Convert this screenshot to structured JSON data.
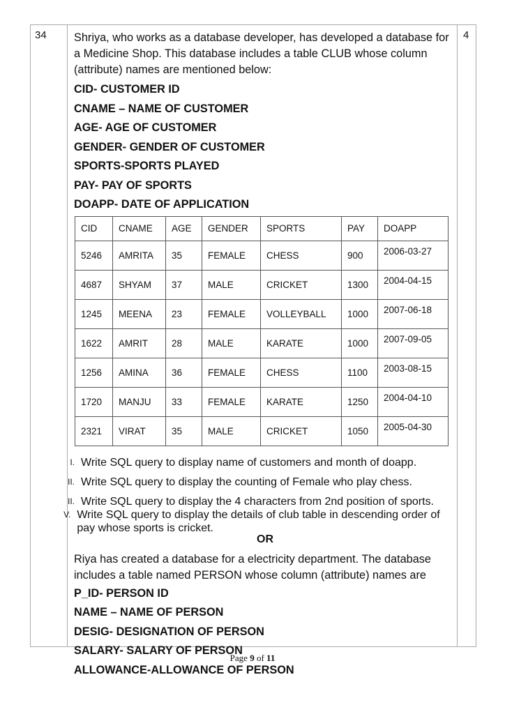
{
  "question_number": "34",
  "marks": "4",
  "intro": "Shriya, who works as a database developer, has developed a database for a Medicine Shop. This database includes a table CLUB whose column (attribute) names are mentioned below:",
  "attributes": [
    "CID- CUSTOMER ID",
    "CNAME – NAME OF CUSTOMER",
    "AGE- AGE OF CUSTOMER",
    "GENDER- GENDER OF CUSTOMER",
    "SPORTS-SPORTS PLAYED",
    "PAY- PAY OF SPORTS",
    "DOAPP- DATE OF APPLICATION"
  ],
  "table": {
    "headers": [
      "CID",
      "CNAME",
      "AGE",
      "GENDER",
      "SPORTS",
      "PAY",
      "DOAPP"
    ],
    "rows": [
      [
        "5246",
        "AMRITA",
        "35",
        "FEMALE",
        "CHESS",
        "900",
        "2006-03-27"
      ],
      [
        "4687",
        "SHYAM",
        "37",
        "MALE",
        "CRICKET",
        "1300",
        "2004-04-15"
      ],
      [
        "1245",
        "MEENA",
        "23",
        "FEMALE",
        "VOLLEYBALL",
        "1000",
        "2007-06-18"
      ],
      [
        "1622",
        "AMRIT",
        "28",
        "MALE",
        "KARATE",
        "1000",
        "2007-09-05"
      ],
      [
        "1256",
        "AMINA",
        "36",
        "FEMALE",
        "CHESS",
        "1100",
        "2003-08-15"
      ],
      [
        "1720",
        "MANJU",
        "33",
        "FEMALE",
        "KARATE",
        "1250",
        "2004-04-10"
      ],
      [
        "2321",
        "VIRAT",
        "35",
        "MALE",
        "CRICKET",
        "1050",
        "2005-04-30"
      ]
    ]
  },
  "questions": [
    {
      "num": "I.",
      "text": "Write SQL query to display name of customers and month of doapp."
    },
    {
      "num": "II.",
      "text": "Write SQL query to display the counting of Female who play chess."
    },
    {
      "num": "II.",
      "text": "Write SQL query to display the 4 characters from 2nd position of sports."
    },
    {
      "num": "V.",
      "text": "Write SQL query to display the details of club table in descending order of pay whose sports is cricket."
    }
  ],
  "or": "OR",
  "alt_intro": "Riya has created a database for a electricity department. The database includes a table named PERSON whose column (attribute) names are",
  "alt_attributes": [
    "P_ID- PERSON ID",
    "NAME – NAME OF PERSON",
    "DESIG- DESIGNATION OF PERSON",
    "SALARY- SALARY OF PERSON",
    "ALLOWANCE-ALLOWANCE OF PERSON"
  ],
  "footer": {
    "page_label": "Page",
    "page": "9",
    "of": "of",
    "total": "11"
  }
}
